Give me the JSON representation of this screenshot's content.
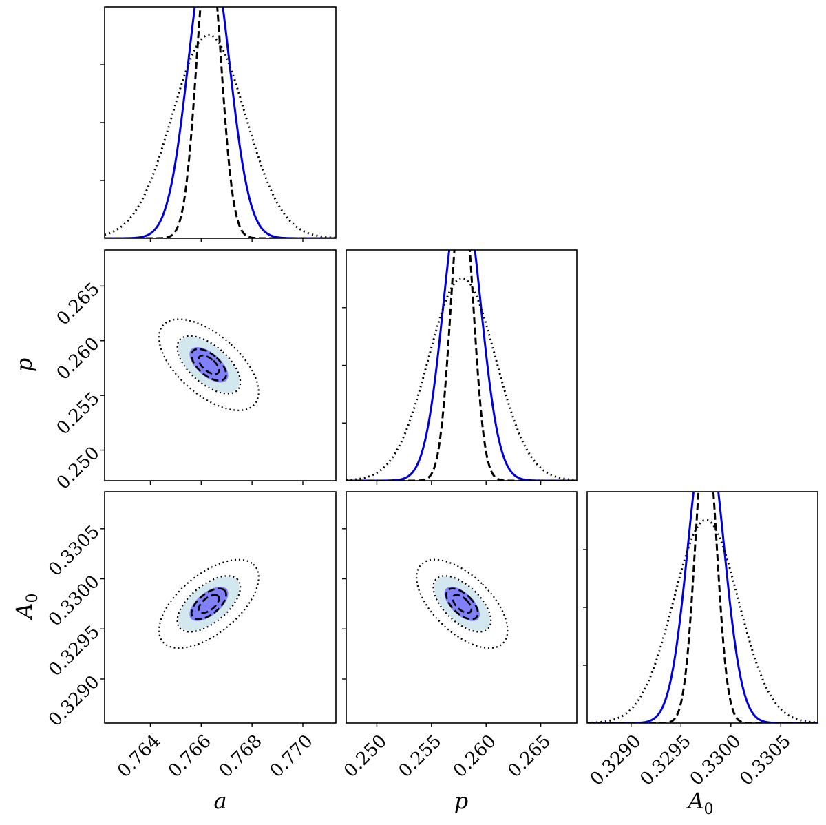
{
  "chart_data": {
    "type": "corner",
    "parameters": [
      {
        "key": "a",
        "label": "a",
        "subscript": "",
        "range": [
          0.7622,
          0.7713
        ],
        "ticks": [
          0.764,
          0.766,
          0.768,
          0.77
        ],
        "tick_labels": [
          "0.764",
          "0.766",
          "0.768",
          "0.770"
        ],
        "mean": 0.7663,
        "sd": 0.0008
      },
      {
        "key": "p",
        "label": "p",
        "subscript": "",
        "range": [
          0.2472,
          0.2683
        ],
        "ticks": [
          0.25,
          0.255,
          0.26,
          0.265
        ],
        "tick_labels": [
          "0.250",
          "0.255",
          "0.260",
          "0.265"
        ],
        "mean": 0.2578,
        "sd": 0.0017
      },
      {
        "key": "A0",
        "label": "A",
        "subscript": "0",
        "range": [
          0.32856,
          0.33087
        ],
        "ticks": [
          0.329,
          0.3295,
          0.33,
          0.3305
        ],
        "tick_labels": [
          "0.3290",
          "0.3295",
          "0.3300",
          "0.3305"
        ],
        "mean": 0.32975,
        "sd": 0.00018
      }
    ],
    "series": [
      {
        "name": "blue-solid",
        "style": "solid",
        "color": "#0000dd",
        "width_factor": 1.0
      },
      {
        "name": "black-dashed",
        "style": "dashed",
        "color": "#000000",
        "width_factor": 0.6
      },
      {
        "name": "black-dotted",
        "style": "dotted",
        "color": "#000000",
        "width_factor": 1.8
      }
    ],
    "correlations": {
      "a_p": -0.6,
      "a_A0": 0.6,
      "p_A0": -0.6
    },
    "contour_levels_sigma": [
      1.0,
      1.5
    ],
    "dashed_contour_sigma": [
      0.5,
      0.85
    ],
    "dotted_contour_sigma": [
      1.55,
      2.45
    ],
    "colors": {
      "inner_fill": "#8080f8",
      "outer_fill": "#d3e7ef",
      "blue_line": "#0000dd"
    }
  }
}
